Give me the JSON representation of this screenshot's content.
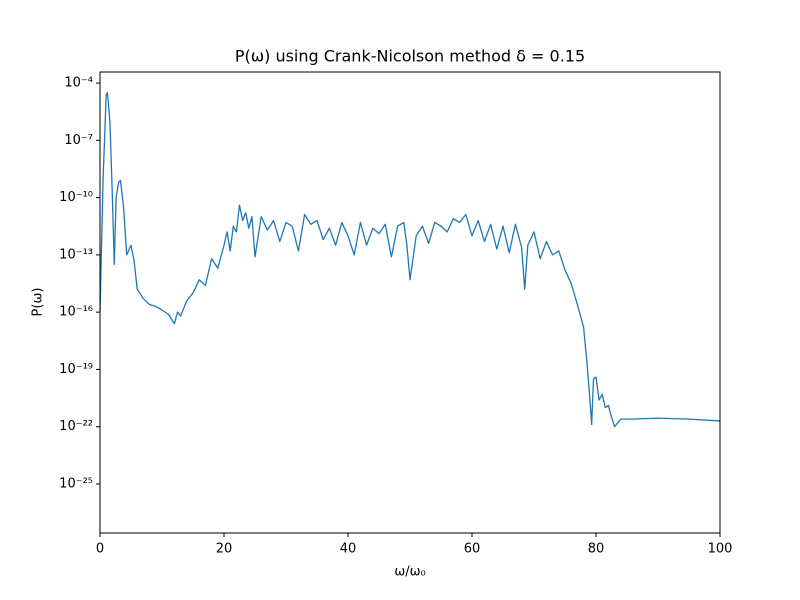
{
  "chart_data": {
    "type": "line",
    "title": "P(ω) using Crank-Nicolson method δ = 0.15",
    "x_label": "ω/ω₀",
    "y_label": "P(ω)",
    "y_scale": "log",
    "xlim": [
      0,
      100
    ],
    "xticks": [
      0,
      20,
      40,
      60,
      80,
      100
    ],
    "ylim": [
      0.00038,
      2.7e-28
    ],
    "yticks": [
      {
        "value": 0.0001,
        "label": "10⁻⁴"
      },
      {
        "value": 1e-07,
        "label": "10⁻⁷"
      },
      {
        "value": 1e-10,
        "label": "10⁻¹⁰"
      },
      {
        "value": 1e-13,
        "label": "10⁻¹³"
      },
      {
        "value": 1e-16,
        "label": "10⁻¹⁶"
      },
      {
        "value": 1e-19,
        "label": "10⁻¹⁹"
      },
      {
        "value": 1e-22,
        "label": "10⁻²²"
      },
      {
        "value": 1e-25,
        "label": "10⁻²⁵"
      }
    ],
    "color": "#1f77b4",
    "x": [
      0,
      0.5,
      1,
      1.2,
      1.6,
      2,
      2.3,
      2.6,
      3,
      3.3,
      3.8,
      4.3,
      5,
      5.5,
      6,
      7,
      8,
      9,
      10,
      11,
      12,
      12.5,
      13,
      14,
      15,
      16,
      17,
      18,
      19,
      20,
      20.5,
      21,
      21.5,
      22,
      22.5,
      23,
      23.5,
      24,
      24.5,
      25,
      26,
      27,
      28,
      29,
      30,
      31,
      32,
      33,
      34,
      35,
      36,
      37,
      38,
      39,
      40,
      41,
      42,
      43,
      44,
      45,
      46,
      47,
      48,
      49,
      49.5,
      50,
      51,
      52,
      53,
      54,
      55,
      56,
      57,
      58,
      59,
      60,
      61,
      62,
      63,
      64,
      65,
      66,
      67,
      68,
      68.5,
      69,
      70,
      71,
      72,
      73,
      74,
      75,
      76,
      77,
      78,
      78.5,
      79,
      79.3,
      79.6,
      80,
      80.5,
      81,
      81.5,
      82,
      82.5,
      83,
      84,
      86,
      90,
      95,
      100
    ],
    "values": [
      1e-16,
      1e-09,
      2.5e-05,
      3.2e-05,
      1e-06,
      1e-10,
      3.2e-14,
      1e-10,
      6.3e-10,
      7.9e-10,
      3.2e-11,
      1e-13,
      3.2e-13,
      5e-14,
      1.6e-15,
      5e-16,
      2.5e-16,
      2e-16,
      1.3e-16,
      7.9e-17,
      2.5e-17,
      1e-16,
      6.3e-17,
      4e-16,
      1e-15,
      5e-15,
      2.5e-15,
      6.3e-14,
      2e-14,
      3.2e-13,
      1.6e-12,
      1.6e-13,
      3.2e-12,
      1.6e-12,
      4e-11,
      6.3e-12,
      1.6e-11,
      2.5e-12,
      1e-11,
      7.9e-14,
      1e-11,
      2e-12,
      6.3e-12,
      5e-13,
      5e-12,
      3.2e-12,
      1.6e-13,
      1.3e-11,
      4e-12,
      6.3e-12,
      6.3e-13,
      2.5e-12,
      3.2e-13,
      5e-12,
      1e-12,
      1e-13,
      5e-12,
      3.2e-13,
      2.5e-12,
      1.3e-12,
      4e-12,
      7.9e-14,
      3.2e-12,
      5e-12,
      3.2e-13,
      5e-15,
      1e-12,
      3.2e-12,
      4e-13,
      5e-12,
      3.2e-12,
      1.6e-12,
      7.9e-12,
      5e-12,
      1.3e-11,
      1e-12,
      6.3e-12,
      5e-13,
      4e-12,
      2e-13,
      3.2e-12,
      1.3e-13,
      4e-12,
      2.5e-13,
      1.6e-15,
      3.2e-13,
      1.6e-12,
      6.3e-14,
      5e-13,
      1e-13,
      1.6e-13,
      1.6e-14,
      3.2e-15,
      2.5e-16,
      1.6e-17,
      3.2e-19,
      3.2e-21,
      1.3e-22,
      3.2e-20,
      4e-20,
      2.5e-21,
      5e-21,
      1e-21,
      1.3e-21,
      3.2e-22,
      1e-22,
      2.5e-22,
      2.5e-22,
      2.8e-22,
      2.5e-22,
      2e-22
    ]
  }
}
